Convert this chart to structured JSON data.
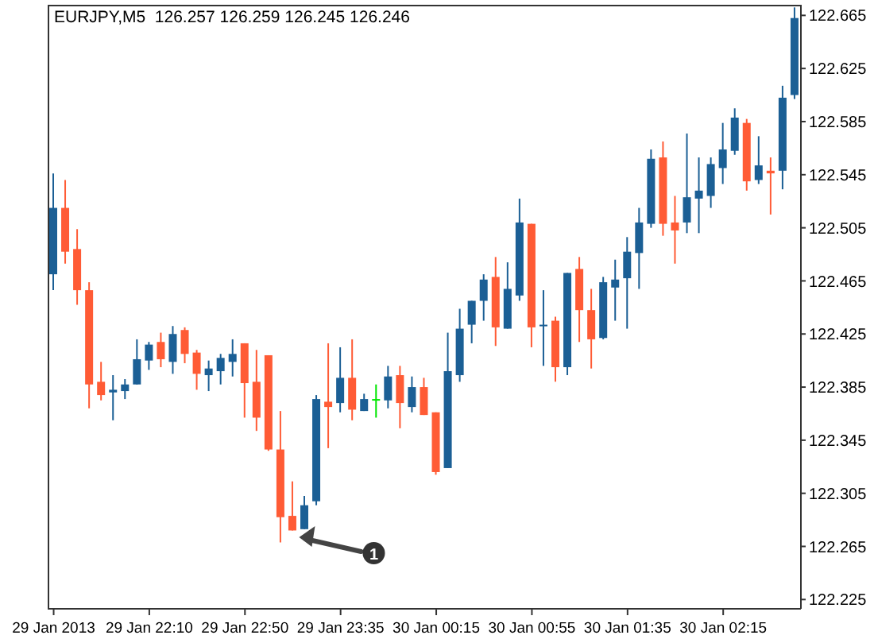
{
  "chart_data": {
    "type": "candlestick",
    "title": "EURJPY,M5  126.257 126.259 126.245 126.246",
    "categories": [
      "29 Jan 2013",
      null,
      null,
      null,
      null,
      null,
      null,
      null,
      "29 Jan 22:10",
      null,
      null,
      null,
      null,
      null,
      null,
      null,
      "29 Jan 22:50",
      null,
      null,
      null,
      null,
      null,
      null,
      null,
      "29 Jan 23:35",
      null,
      null,
      null,
      null,
      null,
      null,
      null,
      "30 Jan 00:15",
      null,
      null,
      null,
      null,
      null,
      null,
      null,
      "30 Jan 00:55",
      null,
      null,
      null,
      null,
      null,
      null,
      null,
      "30 Jan 01:35",
      null,
      null,
      null,
      null,
      null,
      null,
      null,
      "30 Jan 02:15",
      null,
      null,
      null,
      null,
      null,
      null
    ],
    "ohlc": [
      [
        122.47,
        122.546,
        122.458,
        122.52
      ],
      [
        122.52,
        122.541,
        122.478,
        122.487
      ],
      [
        122.489,
        122.504,
        122.447,
        122.458
      ],
      [
        122.458,
        122.464,
        122.369,
        122.387
      ],
      [
        122.389,
        122.404,
        122.375,
        122.379
      ],
      [
        122.381,
        122.394,
        122.36,
        122.383
      ],
      [
        122.382,
        122.391,
        122.376,
        122.387
      ],
      [
        122.387,
        122.421,
        122.387,
        122.406
      ],
      [
        122.405,
        122.419,
        122.398,
        122.417
      ],
      [
        122.419,
        122.426,
        122.4,
        122.406
      ],
      [
        122.404,
        122.431,
        122.395,
        122.425
      ],
      [
        122.428,
        122.43,
        122.403,
        122.41
      ],
      [
        122.411,
        122.413,
        122.383,
        122.395
      ],
      [
        122.394,
        122.405,
        122.382,
        122.399
      ],
      [
        122.397,
        122.41,
        122.387,
        122.407
      ],
      [
        122.404,
        122.421,
        122.393,
        122.41
      ],
      [
        122.418,
        122.418,
        122.362,
        122.388
      ],
      [
        122.389,
        122.413,
        122.352,
        122.362
      ],
      [
        122.409,
        122.409,
        122.337,
        122.338
      ],
      [
        122.338,
        122.367,
        122.268,
        122.287
      ],
      [
        122.288,
        122.314,
        122.277,
        122.277
      ],
      [
        122.278,
        122.303,
        122.278,
        122.296
      ],
      [
        122.299,
        122.379,
        122.296,
        122.376
      ],
      [
        122.374,
        122.418,
        122.339,
        122.37
      ],
      [
        122.373,
        122.415,
        122.366,
        122.392
      ],
      [
        122.392,
        122.421,
        122.36,
        122.368
      ],
      [
        122.367,
        122.38,
        122.367,
        122.376
      ],
      [
        122.376,
        122.387,
        122.362,
        122.376
      ],
      [
        122.375,
        122.401,
        122.369,
        122.393
      ],
      [
        122.394,
        122.401,
        122.354,
        122.373
      ],
      [
        122.37,
        122.393,
        122.366,
        122.385
      ],
      [
        122.385,
        122.392,
        122.364,
        122.364
      ],
      [
        122.366,
        122.366,
        122.319,
        122.321
      ],
      [
        122.324,
        122.426,
        122.324,
        122.397
      ],
      [
        122.394,
        122.444,
        122.389,
        122.429
      ],
      [
        122.432,
        122.45,
        122.418,
        122.45
      ],
      [
        122.45,
        122.47,
        122.435,
        122.466
      ],
      [
        122.468,
        122.483,
        122.416,
        122.43
      ],
      [
        122.429,
        122.479,
        122.429,
        122.459
      ],
      [
        122.454,
        122.527,
        122.45,
        122.509
      ],
      [
        122.508,
        122.508,
        122.415,
        122.43
      ],
      [
        122.431,
        122.458,
        122.401,
        122.432
      ],
      [
        122.435,
        122.438,
        122.389,
        122.4
      ],
      [
        122.4,
        122.471,
        122.394,
        122.471
      ],
      [
        122.474,
        122.483,
        122.419,
        122.443
      ],
      [
        122.443,
        122.459,
        122.399,
        122.421
      ],
      [
        122.422,
        122.468,
        122.421,
        122.464
      ],
      [
        122.46,
        122.481,
        122.435,
        122.466
      ],
      [
        122.467,
        122.498,
        122.429,
        122.487
      ],
      [
        122.486,
        122.52,
        122.459,
        122.509
      ],
      [
        122.508,
        122.564,
        122.505,
        122.557
      ],
      [
        122.558,
        122.57,
        122.499,
        122.508
      ],
      [
        122.509,
        122.529,
        122.478,
        122.503
      ],
      [
        122.509,
        122.576,
        122.501,
        122.528
      ],
      [
        122.527,
        122.558,
        122.501,
        122.533
      ],
      [
        122.529,
        122.558,
        122.52,
        122.553
      ],
      [
        122.55,
        122.584,
        122.538,
        122.564
      ],
      [
        122.563,
        122.595,
        122.56,
        122.588
      ],
      [
        122.584,
        122.587,
        122.533,
        122.54
      ],
      [
        122.541,
        122.574,
        122.538,
        122.552
      ],
      [
        122.548,
        122.558,
        122.515,
        122.546
      ],
      [
        122.548,
        122.612,
        122.534,
        122.603
      ],
      [
        122.605,
        122.671,
        122.602,
        122.663
      ]
    ],
    "colors": [
      "#1b5f95",
      "#ff5b35",
      "#ff5b35",
      "#ff5b35",
      "#ff5b35",
      "#1b5f95",
      "#1b5f95",
      "#1b5f95",
      "#1b5f95",
      "#ff5b35",
      "#1b5f95",
      "#ff5b35",
      "#ff5b35",
      "#1b5f95",
      "#1b5f95",
      "#1b5f95",
      "#ff5b35",
      "#ff5b35",
      "#ff5b35",
      "#ff5b35",
      "#ff5b35",
      "#1b5f95",
      "#1b5f95",
      "#ff5b35",
      "#1b5f95",
      "#ff5b35",
      "#1b5f95",
      "#00e600",
      "#1b5f95",
      "#ff5b35",
      "#1b5f95",
      "#ff5b35",
      "#ff5b35",
      "#1b5f95",
      "#1b5f95",
      "#1b5f95",
      "#1b5f95",
      "#ff5b35",
      "#1b5f95",
      "#1b5f95",
      "#ff5b35",
      "#1b5f95",
      "#ff5b35",
      "#1b5f95",
      "#ff5b35",
      "#ff5b35",
      "#1b5f95",
      "#1b5f95",
      "#1b5f95",
      "#1b5f95",
      "#1b5f95",
      "#ff5b35",
      "#ff5b35",
      "#1b5f95",
      "#1b5f95",
      "#1b5f95",
      "#1b5f95",
      "#1b5f95",
      "#ff5b35",
      "#1b5f95",
      "#ff5b35",
      "#1b5f95",
      "#1b5f95"
    ],
    "ylim": [
      122.218,
      122.673
    ],
    "yticks": [
      122.225,
      122.265,
      122.305,
      122.345,
      122.385,
      122.425,
      122.465,
      122.505,
      122.545,
      122.585,
      122.625,
      122.665
    ],
    "annotations": [
      "1"
    ]
  }
}
